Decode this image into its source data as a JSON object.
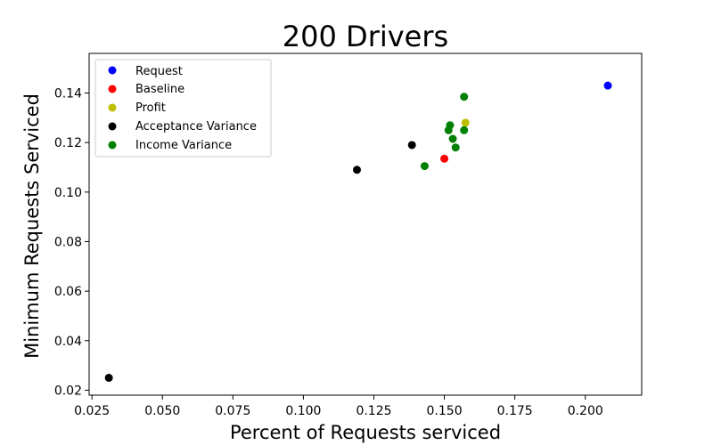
{
  "chart_data": {
    "type": "scatter",
    "title": "200 Drivers",
    "xlabel": "Percent of Requests serviced",
    "ylabel": "Minimum Requests Serviced",
    "xlim": [
      0.024,
      0.22
    ],
    "ylim": [
      0.018,
      0.156
    ],
    "xticks": [
      0.025,
      0.05,
      0.075,
      0.1,
      0.125,
      0.15,
      0.175,
      0.2
    ],
    "xtick_labels": [
      "0.025",
      "0.050",
      "0.075",
      "0.100",
      "0.125",
      "0.150",
      "0.175",
      "0.200"
    ],
    "yticks": [
      0.02,
      0.04,
      0.06,
      0.08,
      0.1,
      0.12,
      0.14
    ],
    "ytick_labels": [
      "0.02",
      "0.04",
      "0.06",
      "0.08",
      "0.10",
      "0.12",
      "0.14"
    ],
    "grid": false,
    "legend_position": "top-left",
    "series": [
      {
        "name": "Request",
        "color": "#0000ff",
        "points": [
          [
            0.208,
            0.143
          ]
        ]
      },
      {
        "name": "Baseline",
        "color": "#ff0000",
        "points": [
          [
            0.15,
            0.1135
          ]
        ]
      },
      {
        "name": "Profit",
        "color": "#bfbf00",
        "points": [
          [
            0.1575,
            0.128
          ]
        ]
      },
      {
        "name": "Acceptance Variance",
        "color": "#000000",
        "points": [
          [
            0.031,
            0.025
          ],
          [
            0.119,
            0.109
          ],
          [
            0.1385,
            0.119
          ]
        ]
      },
      {
        "name": "Income Variance",
        "color": "#008000",
        "points": [
          [
            0.143,
            0.1105
          ],
          [
            0.1515,
            0.125
          ],
          [
            0.152,
            0.127
          ],
          [
            0.153,
            0.1215
          ],
          [
            0.154,
            0.118
          ],
          [
            0.157,
            0.1385
          ],
          [
            0.157,
            0.125
          ]
        ]
      }
    ]
  }
}
